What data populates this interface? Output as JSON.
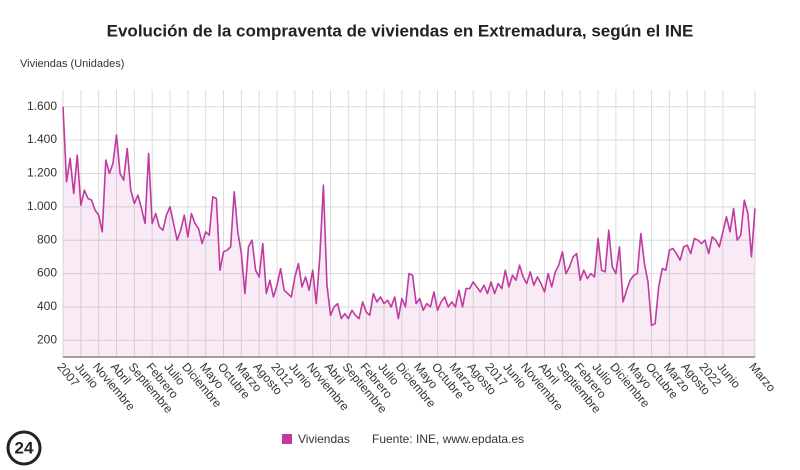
{
  "logo": "24",
  "chart_data": {
    "type": "area",
    "title": "Evolución de la compraventa de viviendas en Extremadura, según el INE",
    "y_label": "Viviendas (Unidades)",
    "source": "Fuente: INE, www.epdata.es",
    "categories": [
      "2007",
      null,
      null,
      null,
      null,
      "Junio",
      null,
      null,
      null,
      null,
      "Noviembre",
      null,
      null,
      null,
      null,
      "Abril",
      null,
      null,
      null,
      null,
      "Septiembre",
      null,
      null,
      null,
      null,
      "Febrero",
      null,
      null,
      null,
      null,
      "Julio",
      null,
      null,
      null,
      null,
      "Diciembre",
      null,
      null,
      null,
      null,
      "Mayo",
      null,
      null,
      null,
      null,
      "Octubre",
      null,
      null,
      null,
      null,
      "Marzo",
      null,
      null,
      null,
      null,
      "Agosto",
      null,
      null,
      null,
      null,
      "2012",
      null,
      null,
      null,
      null,
      "Junio",
      null,
      null,
      null,
      null,
      "Noviembre",
      null,
      null,
      null,
      null,
      "Abril",
      null,
      null,
      null,
      null,
      "Septiembre",
      null,
      null,
      null,
      null,
      "Febrero",
      null,
      null,
      null,
      null,
      "Julio",
      null,
      null,
      null,
      null,
      "Diciembre",
      null,
      null,
      null,
      null,
      "Mayo",
      null,
      null,
      null,
      null,
      "Octubre",
      null,
      null,
      null,
      null,
      "Marzo",
      null,
      null,
      null,
      null,
      "Agosto",
      null,
      null,
      null,
      null,
      "2017",
      null,
      null,
      null,
      null,
      "Junio",
      null,
      null,
      null,
      null,
      "Noviembre",
      null,
      null,
      null,
      null,
      "Abril",
      null,
      null,
      null,
      null,
      "Septiembre",
      null,
      null,
      null,
      null,
      "Febrero",
      null,
      null,
      null,
      null,
      "Julio",
      null,
      null,
      null,
      null,
      "Diciembre",
      null,
      null,
      null,
      null,
      "Mayo",
      null,
      null,
      null,
      null,
      "Octubre",
      null,
      null,
      null,
      null,
      "Marzo",
      null,
      null,
      null,
      null,
      "Agosto",
      null,
      null,
      null,
      null,
      "2022",
      null,
      null,
      null,
      null,
      "Junio",
      null,
      null,
      null,
      null,
      null,
      null,
      null,
      null,
      "Marzo"
    ],
    "series": [
      {
        "name": "Viviendas",
        "color": "#c03aa0",
        "values": [
          1600,
          1150,
          1290,
          1080,
          1310,
          1010,
          1100,
          1050,
          1040,
          980,
          950,
          850,
          1280,
          1200,
          1260,
          1430,
          1200,
          1160,
          1350,
          1100,
          1020,
          1070,
          990,
          900,
          1320,
          900,
          960,
          880,
          860,
          950,
          1000,
          900,
          800,
          860,
          950,
          820,
          960,
          900,
          870,
          780,
          850,
          830,
          1060,
          1050,
          620,
          730,
          740,
          760,
          1090,
          850,
          720,
          480,
          760,
          800,
          620,
          580,
          780,
          480,
          560,
          460,
          530,
          630,
          500,
          480,
          460,
          580,
          660,
          520,
          580,
          500,
          620,
          420,
          700,
          1130,
          530,
          350,
          400,
          420,
          330,
          360,
          330,
          380,
          350,
          330,
          430,
          370,
          350,
          480,
          430,
          460,
          420,
          440,
          400,
          460,
          330,
          450,
          400,
          600,
          590,
          420,
          450,
          380,
          420,
          400,
          490,
          380,
          430,
          460,
          400,
          430,
          400,
          500,
          400,
          510,
          510,
          550,
          520,
          490,
          530,
          480,
          550,
          480,
          540,
          510,
          620,
          520,
          590,
          560,
          650,
          580,
          540,
          610,
          530,
          580,
          540,
          490,
          600,
          520,
          610,
          650,
          730,
          600,
          640,
          700,
          720,
          560,
          620,
          570,
          600,
          580,
          810,
          620,
          610,
          860,
          640,
          600,
          760,
          430,
          500,
          560,
          590,
          600,
          840,
          660,
          550,
          290,
          300,
          520,
          630,
          620,
          740,
          750,
          720,
          680,
          760,
          770,
          720,
          810,
          800,
          780,
          800,
          720,
          820,
          800,
          760,
          850,
          940,
          850,
          990,
          800,
          830,
          1040,
          960,
          700,
          990
        ]
      }
    ],
    "ylim": [
      100,
      1700
    ],
    "yticks": [
      200,
      400,
      600,
      800,
      {
        "value": 1000,
        "label": "1.000"
      },
      {
        "value": 1200,
        "label": "1.200"
      },
      {
        "value": 1400,
        "label": "1.400"
      },
      {
        "value": 1600,
        "label": "1.600"
      }
    ],
    "grid": true
  }
}
